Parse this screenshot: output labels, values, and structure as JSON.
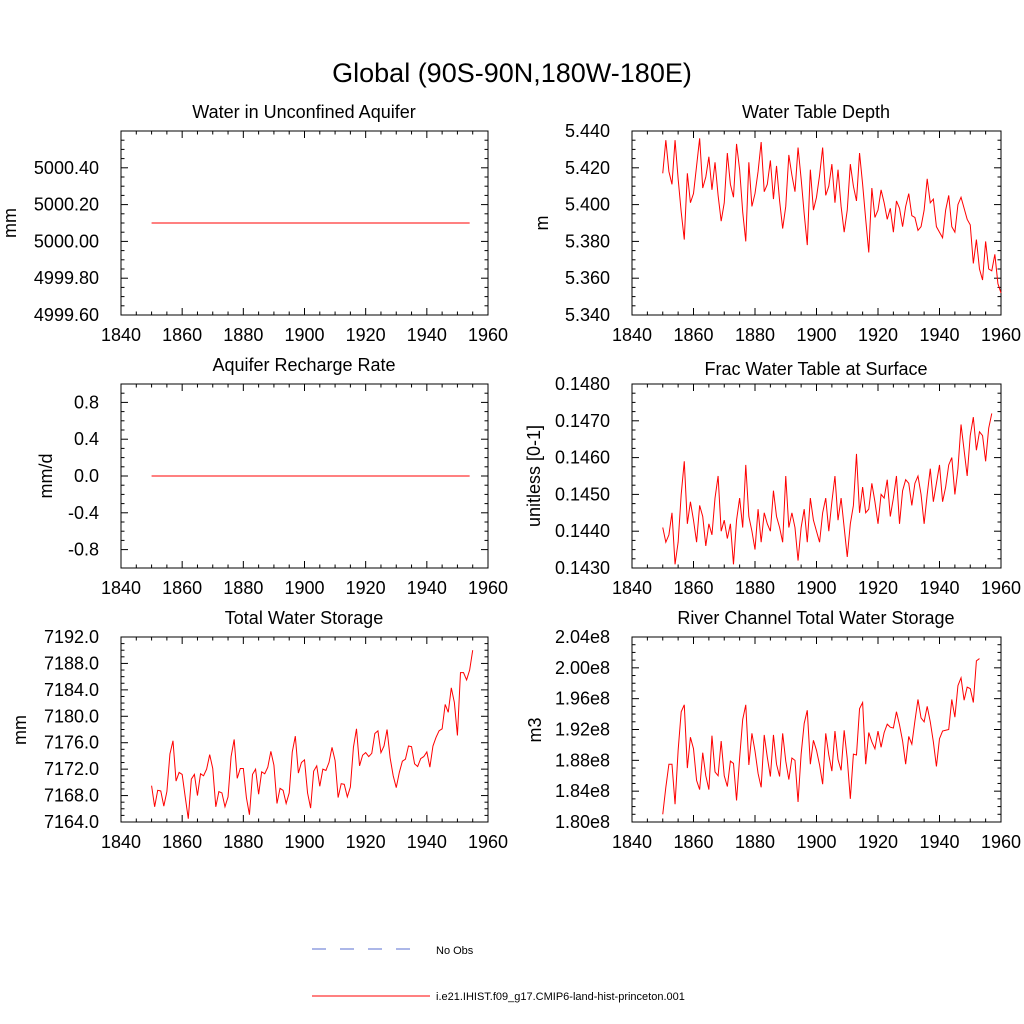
{
  "figure_title": "Global (90S-90N,180W-180E)",
  "legend": [
    {
      "label": "No Obs",
      "color": "#5a6fd0",
      "style": "dashed"
    },
    {
      "label": "i.e21.IHIST.f09_g17.CMIP6-land-hist-princeton.001",
      "color": "#ff0000",
      "style": "solid"
    }
  ],
  "chart_data": [
    {
      "type": "line",
      "title": "Water in Unconfined Aquifer",
      "ylabel": "mm",
      "xlim": [
        1840,
        1960
      ],
      "ylim": [
        4999.6,
        5000.6
      ],
      "xticks": [
        1840,
        1860,
        1880,
        1900,
        1920,
        1940,
        1960
      ],
      "xtick_labels": [
        "1840",
        "1860",
        "1880",
        "1900",
        "1920",
        "1940",
        "1960"
      ],
      "yticks": [
        4999.6,
        4999.8,
        5000.0,
        5000.2,
        5000.4
      ],
      "ytick_labels": [
        "4999.60",
        "4999.80",
        "5000.00",
        "5000.20",
        "5000.40"
      ],
      "x_start": 1850,
      "x_step": 1,
      "series": [
        {
          "color": "#ff0000",
          "values": [
            5000.1,
            5000.1,
            5000.1,
            5000.1,
            5000.1,
            5000.1,
            5000.1,
            5000.1,
            5000.1,
            5000.1,
            5000.1,
            5000.1,
            5000.1,
            5000.1,
            5000.1,
            5000.1,
            5000.1,
            5000.1,
            5000.1,
            5000.1,
            5000.1,
            5000.1,
            5000.1,
            5000.1,
            5000.1,
            5000.1,
            5000.1,
            5000.1,
            5000.1,
            5000.1,
            5000.1,
            5000.1,
            5000.1,
            5000.1,
            5000.1,
            5000.1,
            5000.1,
            5000.1,
            5000.1,
            5000.1,
            5000.1,
            5000.1,
            5000.1,
            5000.1,
            5000.1,
            5000.1,
            5000.1,
            5000.1,
            5000.1,
            5000.1,
            5000.1,
            5000.1,
            5000.1,
            5000.1,
            5000.1,
            5000.1,
            5000.1,
            5000.1,
            5000.1,
            5000.1,
            5000.1,
            5000.1,
            5000.1,
            5000.1,
            5000.1,
            5000.1,
            5000.1,
            5000.1,
            5000.1,
            5000.1,
            5000.1,
            5000.1,
            5000.1,
            5000.1,
            5000.1,
            5000.1,
            5000.1,
            5000.1,
            5000.1,
            5000.1,
            5000.1,
            5000.1,
            5000.1,
            5000.1,
            5000.1,
            5000.1,
            5000.1,
            5000.1,
            5000.1,
            5000.1,
            5000.1,
            5000.1,
            5000.1,
            5000.1,
            5000.1,
            5000.1,
            5000.1,
            5000.1,
            5000.1,
            5000.1,
            5000.1,
            5000.1,
            5000.1,
            5000.1,
            5000.1
          ]
        }
      ]
    },
    {
      "type": "line",
      "title": "Water Table Depth",
      "ylabel": "m",
      "xlim": [
        1840,
        1960
      ],
      "ylim": [
        5.34,
        5.44
      ],
      "xticks": [
        1840,
        1860,
        1880,
        1900,
        1920,
        1940,
        1960
      ],
      "xtick_labels": [
        "1840",
        "1860",
        "1880",
        "1900",
        "1920",
        "1940",
        "1960"
      ],
      "yticks": [
        5.34,
        5.36,
        5.38,
        5.4,
        5.42,
        5.44
      ],
      "ytick_labels": [
        "5.340",
        "5.360",
        "5.380",
        "5.400",
        "5.420",
        "5.440"
      ],
      "x_start": 1850,
      "x_step": 1,
      "series": [
        {
          "color": "#ff0000",
          "values": [
            5.417,
            5.435,
            5.418,
            5.411,
            5.435,
            5.414,
            5.396,
            5.381,
            5.417,
            5.401,
            5.406,
            5.421,
            5.436,
            5.409,
            5.415,
            5.426,
            5.408,
            5.423,
            5.405,
            5.391,
            5.401,
            5.428,
            5.411,
            5.404,
            5.433,
            5.419,
            5.396,
            5.38,
            5.423,
            5.399,
            5.406,
            5.418,
            5.434,
            5.407,
            5.411,
            5.424,
            5.403,
            5.421,
            5.402,
            5.387,
            5.399,
            5.427,
            5.416,
            5.407,
            5.431,
            5.414,
            5.395,
            5.378,
            5.419,
            5.397,
            5.404,
            5.416,
            5.431,
            5.405,
            5.41,
            5.422,
            5.401,
            5.419,
            5.399,
            5.385,
            5.397,
            5.422,
            5.41,
            5.402,
            5.428,
            5.411,
            5.392,
            5.374,
            5.409,
            5.393,
            5.397,
            5.408,
            5.401,
            5.392,
            5.398,
            5.385,
            5.402,
            5.398,
            5.388,
            5.399,
            5.406,
            5.394,
            5.393,
            5.386,
            5.388,
            5.397,
            5.414,
            5.401,
            5.403,
            5.388,
            5.385,
            5.382,
            5.397,
            5.405,
            5.388,
            5.385,
            5.4,
            5.404,
            5.398,
            5.392,
            5.389,
            5.368,
            5.381,
            5.365,
            5.359,
            5.38,
            5.365,
            5.364,
            5.373,
            5.357,
            5.352
          ]
        }
      ]
    },
    {
      "type": "line",
      "title": "Aquifer Recharge Rate",
      "ylabel": "mm/d",
      "xlim": [
        1840,
        1960
      ],
      "ylim": [
        -1.0,
        1.0
      ],
      "xticks": [
        1840,
        1860,
        1880,
        1900,
        1920,
        1940,
        1960
      ],
      "xtick_labels": [
        "1840",
        "1860",
        "1880",
        "1900",
        "1920",
        "1940",
        "1960"
      ],
      "yticks": [
        -0.8,
        -0.4,
        0.0,
        0.4,
        0.8
      ],
      "ytick_labels": [
        "-0.8",
        "-0.4",
        "0.0",
        "0.4",
        "0.8"
      ],
      "x_start": 1850,
      "x_step": 1,
      "series": [
        {
          "color": "#ff0000",
          "values": [
            0,
            0,
            0,
            0,
            0,
            0,
            0,
            0,
            0,
            0,
            0,
            0,
            0,
            0,
            0,
            0,
            0,
            0,
            0,
            0,
            0,
            0,
            0,
            0,
            0,
            0,
            0,
            0,
            0,
            0,
            0,
            0,
            0,
            0,
            0,
            0,
            0,
            0,
            0,
            0,
            0,
            0,
            0,
            0,
            0,
            0,
            0,
            0,
            0,
            0,
            0,
            0,
            0,
            0,
            0,
            0,
            0,
            0,
            0,
            0,
            0,
            0,
            0,
            0,
            0,
            0,
            0,
            0,
            0,
            0,
            0,
            0,
            0,
            0,
            0,
            0,
            0,
            0,
            0,
            0,
            0,
            0,
            0,
            0,
            0,
            0,
            0,
            0,
            0,
            0,
            0,
            0,
            0,
            0,
            0,
            0,
            0,
            0,
            0,
            0,
            0,
            0,
            0,
            0,
            0
          ]
        }
      ]
    },
    {
      "type": "line",
      "title": "Frac Water Table at Surface",
      "ylabel": "unitless [0-1]",
      "xlim": [
        1840,
        1960
      ],
      "ylim": [
        0.143,
        0.148
      ],
      "xticks": [
        1840,
        1860,
        1880,
        1900,
        1920,
        1940,
        1960
      ],
      "xtick_labels": [
        "1840",
        "1860",
        "1880",
        "1900",
        "1920",
        "1940",
        "1960"
      ],
      "yticks": [
        0.143,
        0.144,
        0.145,
        0.146,
        0.147,
        0.148
      ],
      "ytick_labels": [
        "0.1430",
        "0.1440",
        "0.1450",
        "0.1460",
        "0.1470",
        "0.1480"
      ],
      "x_start": 1850,
      "x_step": 1,
      "series": [
        {
          "color": "#ff0000",
          "values": [
            0.1441,
            0.1437,
            0.1439,
            0.1445,
            0.1431,
            0.1437,
            0.145,
            0.1459,
            0.1442,
            0.1448,
            0.1443,
            0.1437,
            0.1447,
            0.1444,
            0.1436,
            0.1442,
            0.1439,
            0.1449,
            0.1455,
            0.144,
            0.1443,
            0.1438,
            0.1442,
            0.1431,
            0.1443,
            0.1449,
            0.1441,
            0.1458,
            0.1444,
            0.144,
            0.1435,
            0.1446,
            0.1437,
            0.1445,
            0.1442,
            0.144,
            0.1451,
            0.1444,
            0.1441,
            0.1437,
            0.1455,
            0.1441,
            0.1445,
            0.1441,
            0.1432,
            0.1441,
            0.1446,
            0.1437,
            0.1449,
            0.1443,
            0.144,
            0.1437,
            0.1445,
            0.1449,
            0.144,
            0.1448,
            0.1455,
            0.1443,
            0.1449,
            0.1441,
            0.1433,
            0.1442,
            0.1447,
            0.1461,
            0.1445,
            0.1452,
            0.1445,
            0.1446,
            0.1453,
            0.1448,
            0.1442,
            0.145,
            0.1449,
            0.1454,
            0.1444,
            0.1449,
            0.1455,
            0.1442,
            0.1451,
            0.1454,
            0.1453,
            0.1447,
            0.1453,
            0.1455,
            0.145,
            0.1442,
            0.145,
            0.1457,
            0.1448,
            0.1453,
            0.1458,
            0.1448,
            0.1452,
            0.1458,
            0.146,
            0.145,
            0.1457,
            0.1469,
            0.1462,
            0.1455,
            0.1466,
            0.1471,
            0.1462,
            0.1467,
            0.1466,
            0.1459,
            0.1468,
            0.1472
          ]
        }
      ]
    },
    {
      "type": "line",
      "title": "Total Water Storage",
      "ylabel": "mm",
      "xlim": [
        1840,
        1960
      ],
      "ylim": [
        7164.0,
        7192.0
      ],
      "xticks": [
        1840,
        1860,
        1880,
        1900,
        1920,
        1940,
        1960
      ],
      "xtick_labels": [
        "1840",
        "1860",
        "1880",
        "1900",
        "1920",
        "1940",
        "1960"
      ],
      "yticks": [
        7164.0,
        7168.0,
        7172.0,
        7176.0,
        7180.0,
        7184.0,
        7188.0,
        7192.0
      ],
      "ytick_labels": [
        "7164.0",
        "7168.0",
        "7172.0",
        "7176.0",
        "7180.0",
        "7184.0",
        "7188.0",
        "7192.0"
      ],
      "x_start": 1850,
      "x_step": 1,
      "series": [
        {
          "color": "#ff0000",
          "values": [
            7169.5,
            7166.3,
            7168.8,
            7168.7,
            7166.4,
            7168.6,
            7174.3,
            7176.3,
            7170.2,
            7171.5,
            7171.2,
            7167.8,
            7164.5,
            7170.5,
            7171.2,
            7168.0,
            7171.3,
            7171.0,
            7172.0,
            7174.2,
            7172.1,
            7166.3,
            7168.6,
            7168.4,
            7166.3,
            7167.8,
            7173.9,
            7176.5,
            7170.6,
            7172.1,
            7172.1,
            7167.7,
            7165.1,
            7171.2,
            7172.0,
            7168.2,
            7171.6,
            7171.3,
            7172.3,
            7174.7,
            7172.6,
            7166.8,
            7169.1,
            7168.8,
            7166.8,
            7168.4,
            7174.6,
            7177.0,
            7171.4,
            7173.0,
            7173.4,
            7168.4,
            7166.1,
            7171.7,
            7172.5,
            7169.4,
            7172.0,
            7171.8,
            7173.0,
            7175.3,
            7173.3,
            7167.7,
            7169.8,
            7169.7,
            7167.8,
            7169.3,
            7175.3,
            7178.1,
            7172.5,
            7174.1,
            7174.5,
            7173.9,
            7174.4,
            7177.4,
            7177.8,
            7174.5,
            7175.5,
            7178.0,
            7173.7,
            7171.0,
            7169.2,
            7171.5,
            7173.2,
            7173.5,
            7175.5,
            7175.4,
            7172.8,
            7172.4,
            7173.6,
            7173.9,
            7174.6,
            7172.3,
            7175.5,
            7176.8,
            7177.8,
            7178.1,
            7181.8,
            7180.6,
            7184.3,
            7182.1,
            7177.1,
            7186.6,
            7186.6,
            7185.5,
            7187.0,
            7190.0
          ]
        }
      ]
    },
    {
      "type": "line",
      "title": "River Channel Total Water Storage",
      "ylabel": "m3",
      "xlim": [
        1840,
        1960
      ],
      "ylim": [
        180000000.0,
        204000000.0
      ],
      "xticks": [
        1840,
        1860,
        1880,
        1900,
        1920,
        1940,
        1960
      ],
      "xtick_labels": [
        "1840",
        "1860",
        "1880",
        "1900",
        "1920",
        "1940",
        "1960"
      ],
      "yticks": [
        180000000.0,
        184000000.0,
        188000000.0,
        192000000.0,
        196000000.0,
        200000000.0,
        204000000.0
      ],
      "ytick_labels": [
        "1.80e8",
        "1.84e8",
        "1.88e8",
        "1.92e8",
        "1.96e8",
        "2.00e8",
        "2.04e8"
      ],
      "x_start": 1850,
      "x_step": 1,
      "series": [
        {
          "color": "#ff0000",
          "values": [
            181000000,
            184500000,
            187500000,
            187500000,
            182300000,
            189300000,
            194300000,
            195200000,
            187000000,
            191000000,
            189500000,
            185400000,
            184200000,
            189000000,
            186000000,
            184200000,
            191200000,
            186500000,
            186000000,
            190500000,
            186000000,
            184600000,
            187900000,
            187600000,
            182800000,
            188300000,
            193300000,
            195200000,
            187400000,
            191500000,
            189200000,
            186300000,
            184500000,
            191300000,
            188400000,
            185900000,
            191300000,
            187500000,
            185900000,
            191500000,
            187900000,
            185500000,
            188300000,
            188000000,
            182600000,
            188800000,
            192800000,
            194500000,
            187500000,
            190600000,
            189300000,
            187400000,
            184900000,
            191500000,
            188700000,
            186600000,
            191800000,
            188100000,
            186700000,
            191900000,
            188200000,
            183000000,
            188800000,
            188700000,
            194700000,
            195500000,
            187500000,
            191600000,
            190400000,
            189500000,
            191800000,
            189700000,
            191600000,
            192700000,
            192300000,
            192200000,
            194300000,
            192600000,
            190500000,
            187500000,
            191100000,
            190100000,
            193100000,
            195900000,
            193500000,
            193000000,
            195000000,
            193000000,
            190400000,
            187200000,
            190800000,
            191800000,
            191900000,
            192000000,
            195900000,
            193600000,
            197700000,
            198700000,
            195800000,
            197500000,
            197300000,
            195500000,
            200900000,
            201200000
          ]
        }
      ]
    }
  ]
}
